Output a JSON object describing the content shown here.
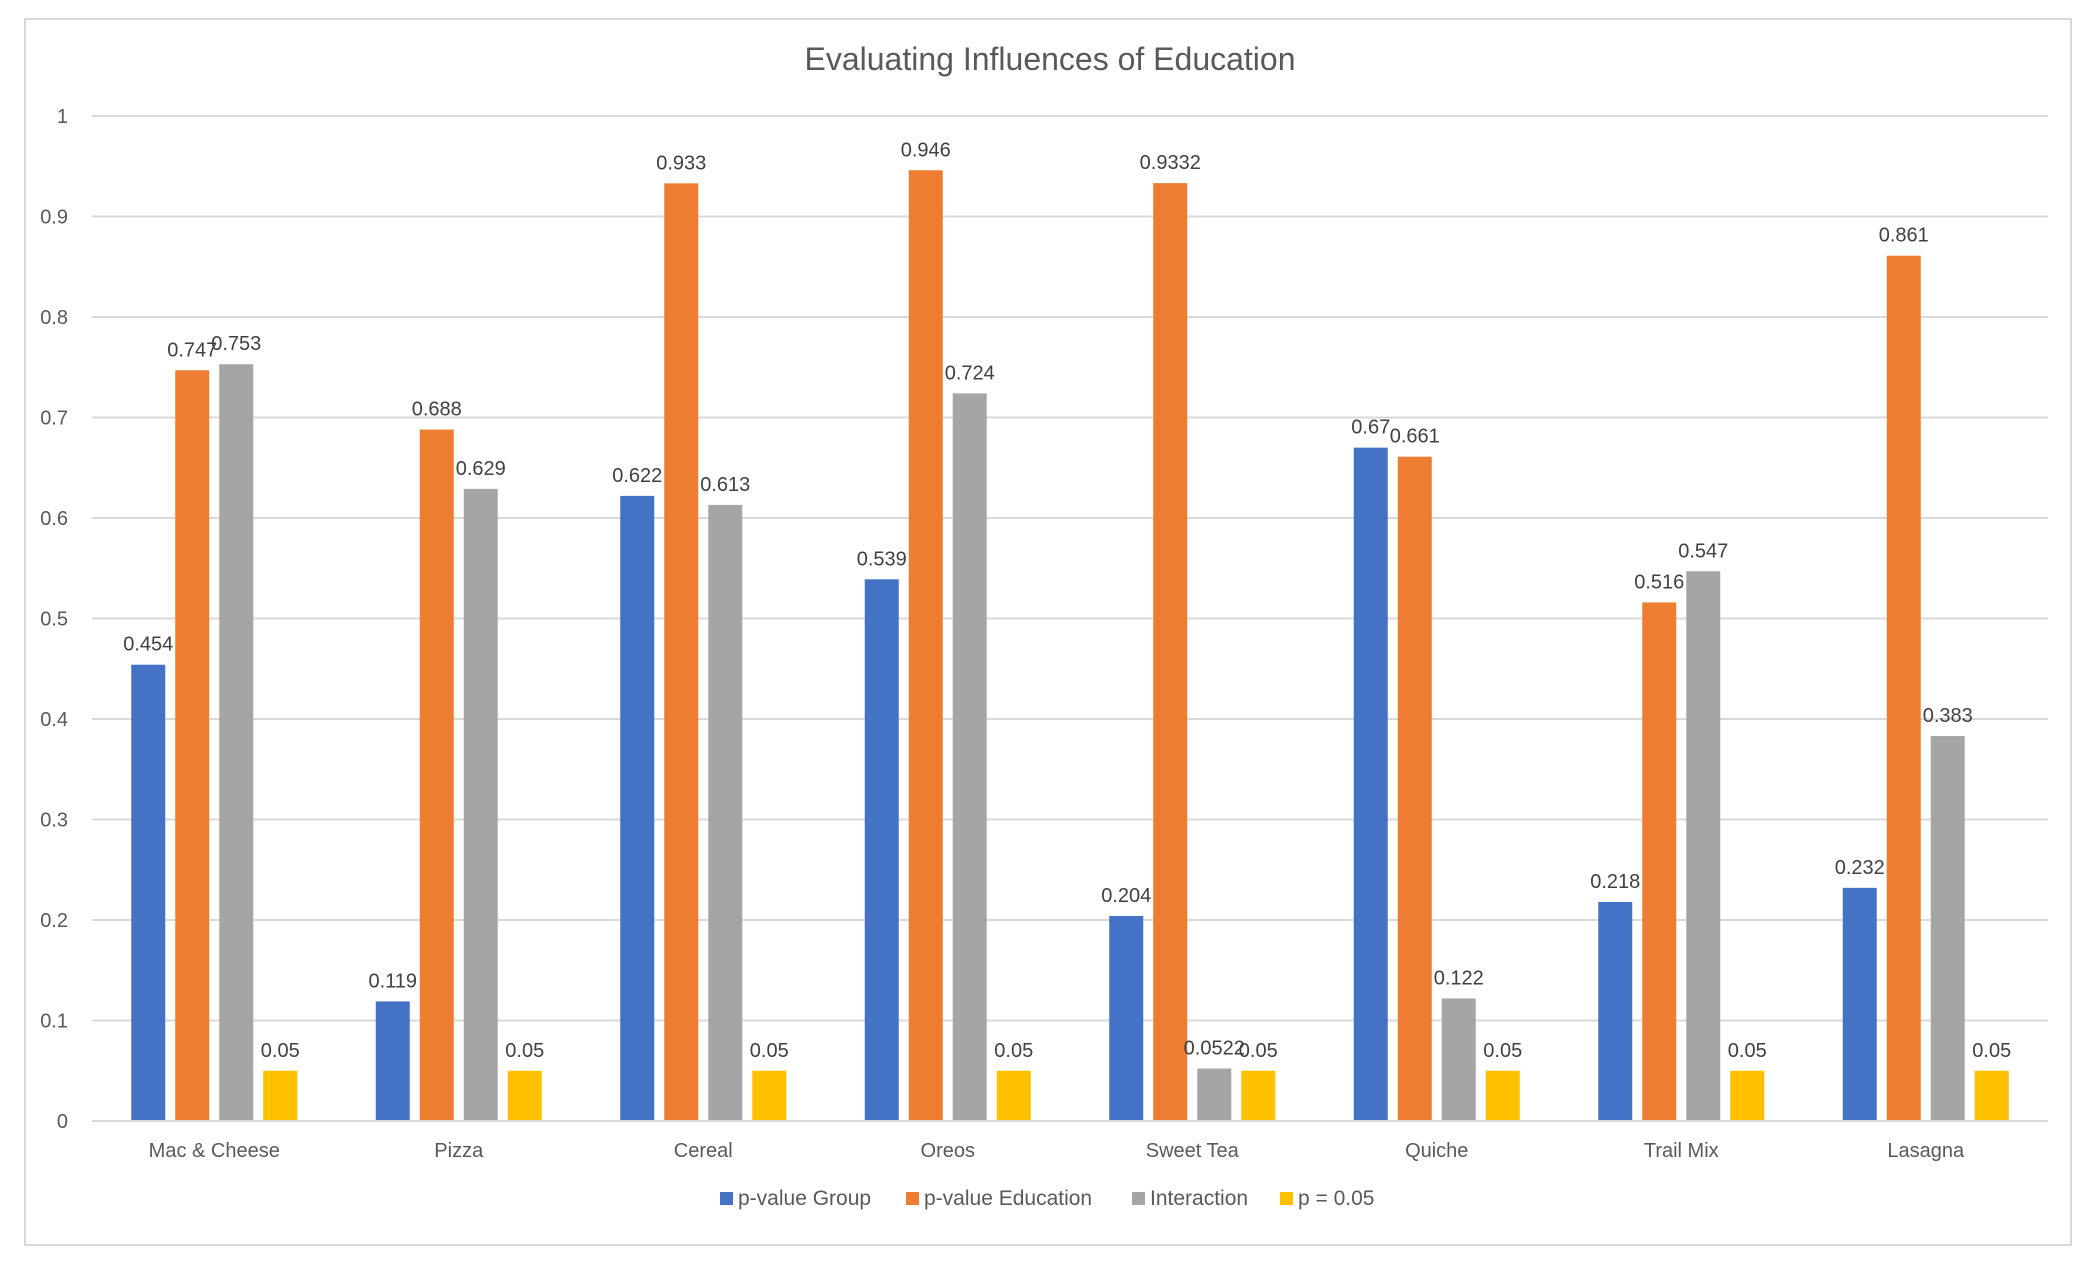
{
  "chart_data": {
    "type": "bar",
    "title": "Evaluating Influences of Education",
    "xlabel": "",
    "ylabel": "",
    "ylim": [
      0,
      1
    ],
    "yticks": [
      "0",
      "0.1",
      "0.2",
      "0.3",
      "0.4",
      "0.5",
      "0.6",
      "0.7",
      "0.8",
      "0.9",
      "1"
    ],
    "grid": true,
    "legend_position": "bottom",
    "categories": [
      "Mac & Cheese",
      "Pizza",
      "Cereal",
      "Oreos",
      "Sweet Tea",
      "Quiche",
      "Trail Mix",
      "Lasagna"
    ],
    "series": [
      {
        "name": "p-value Group",
        "color": "#4472c4",
        "values": [
          0.454,
          0.119,
          0.622,
          0.539,
          0.204,
          0.67,
          0.218,
          0.232
        ],
        "labels": [
          "0.454",
          "0.119",
          "0.622",
          "0.539",
          "0.204",
          "0.67",
          "0.218",
          "0.232"
        ]
      },
      {
        "name": "p-value Education",
        "color": "#ed7d31",
        "values": [
          0.747,
          0.688,
          0.933,
          0.946,
          0.9332,
          0.661,
          0.516,
          0.861
        ],
        "labels": [
          "0.747",
          "0.688",
          "0.933",
          "0.946",
          "0.9332",
          "0.661",
          "0.516",
          "0.861"
        ]
      },
      {
        "name": "Interaction",
        "color": "#a5a5a5",
        "values": [
          0.753,
          0.629,
          0.613,
          0.724,
          0.0522,
          0.122,
          0.547,
          0.383
        ],
        "labels": [
          "0.753",
          "0.629",
          "0.613",
          "0.724",
          "0.0522",
          "0.122",
          "0.547",
          "0.383"
        ]
      },
      {
        "name": "p = 0.05",
        "color": "#ffc000",
        "values": [
          0.05,
          0.05,
          0.05,
          0.05,
          0.05,
          0.05,
          0.05,
          0.05
        ],
        "labels": [
          "0.05",
          "0.05",
          "0.05",
          "0.05",
          "0.05",
          "0.05",
          "0.05",
          "0.05"
        ]
      }
    ]
  }
}
